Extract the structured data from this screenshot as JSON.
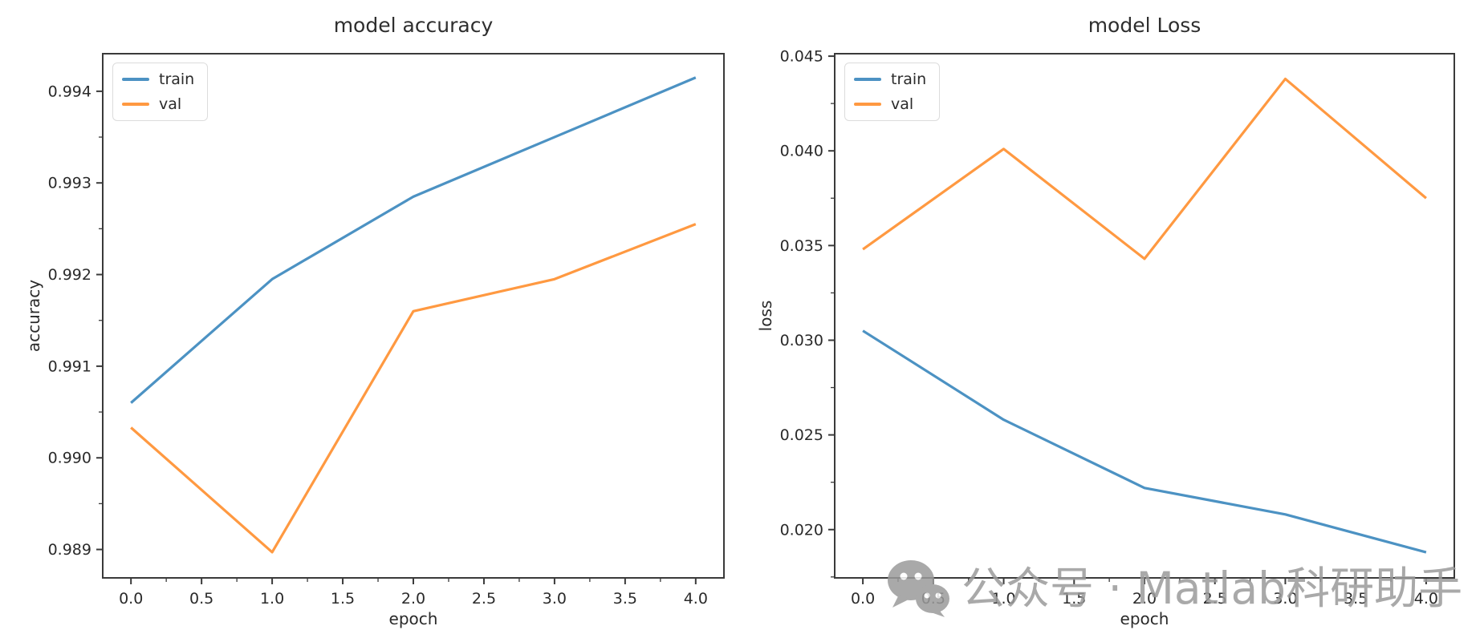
{
  "watermark": {
    "text": "公众号 · Matlab科研助手",
    "icon": "wechat-icon",
    "color": "#9b9b9b"
  },
  "style": {
    "train_color": "#4c92c3",
    "val_color": "#ff9941",
    "spine_color": "#3a3a3a",
    "text_color": "#2a2a2a",
    "background": "#ffffff"
  },
  "chart_data": [
    {
      "type": "line",
      "title": "model accuracy",
      "xlabel": "epoch",
      "ylabel": "accuracy",
      "x": [
        0,
        1,
        2,
        3,
        4
      ],
      "series": [
        {
          "name": "train",
          "color": "#4c92c3",
          "values": [
            0.9906,
            0.99195,
            0.99285,
            0.9935,
            0.99415
          ]
        },
        {
          "name": "val",
          "color": "#ff9941",
          "values": [
            0.99033,
            0.98897,
            0.9916,
            0.99195,
            0.99255
          ]
        }
      ],
      "xlim": [
        -0.2,
        4.2
      ],
      "ylim": [
        0.98869,
        0.99441
      ],
      "xtick_values": [
        0,
        0.5,
        1,
        1.5,
        2,
        2.5,
        3,
        3.5,
        4
      ],
      "xtick_labels": [
        "0.0",
        "0.5",
        "1.0",
        "1.5",
        "2.0",
        "2.5",
        "3.0",
        "3.5",
        "4.0"
      ],
      "ytick_values": [
        0.989,
        0.99,
        0.991,
        0.992,
        0.993,
        0.994
      ],
      "ytick_labels": [
        "0.989",
        "0.990",
        "0.991",
        "0.992",
        "0.993",
        "0.994"
      ],
      "legend": {
        "position": "upper left",
        "items": [
          "train",
          "val"
        ]
      },
      "grid": false
    },
    {
      "type": "line",
      "title": "model Loss",
      "xlabel": "epoch",
      "ylabel": "loss",
      "x": [
        0,
        1,
        2,
        3,
        4
      ],
      "series": [
        {
          "name": "train",
          "color": "#4c92c3",
          "values": [
            0.0305,
            0.0258,
            0.0222,
            0.0208,
            0.0188
          ]
        },
        {
          "name": "val",
          "color": "#ff9941",
          "values": [
            0.0348,
            0.0401,
            0.0343,
            0.0438,
            0.0375
          ]
        }
      ],
      "xlim": [
        -0.2,
        4.2
      ],
      "ylim": [
        0.01745,
        0.04513
      ],
      "xtick_values": [
        0,
        0.5,
        1,
        1.5,
        2,
        2.5,
        3,
        3.5,
        4
      ],
      "xtick_labels": [
        "0.0",
        "0.5",
        "1.0",
        "1.5",
        "2.0",
        "2.5",
        "3.0",
        "3.5",
        "4.0"
      ],
      "ytick_values": [
        0.02,
        0.025,
        0.03,
        0.035,
        0.04,
        0.045
      ],
      "ytick_labels": [
        "0.020",
        "0.025",
        "0.030",
        "0.035",
        "0.040",
        "0.045"
      ],
      "legend": {
        "position": "upper left",
        "items": [
          "train",
          "val"
        ]
      },
      "grid": false
    }
  ]
}
